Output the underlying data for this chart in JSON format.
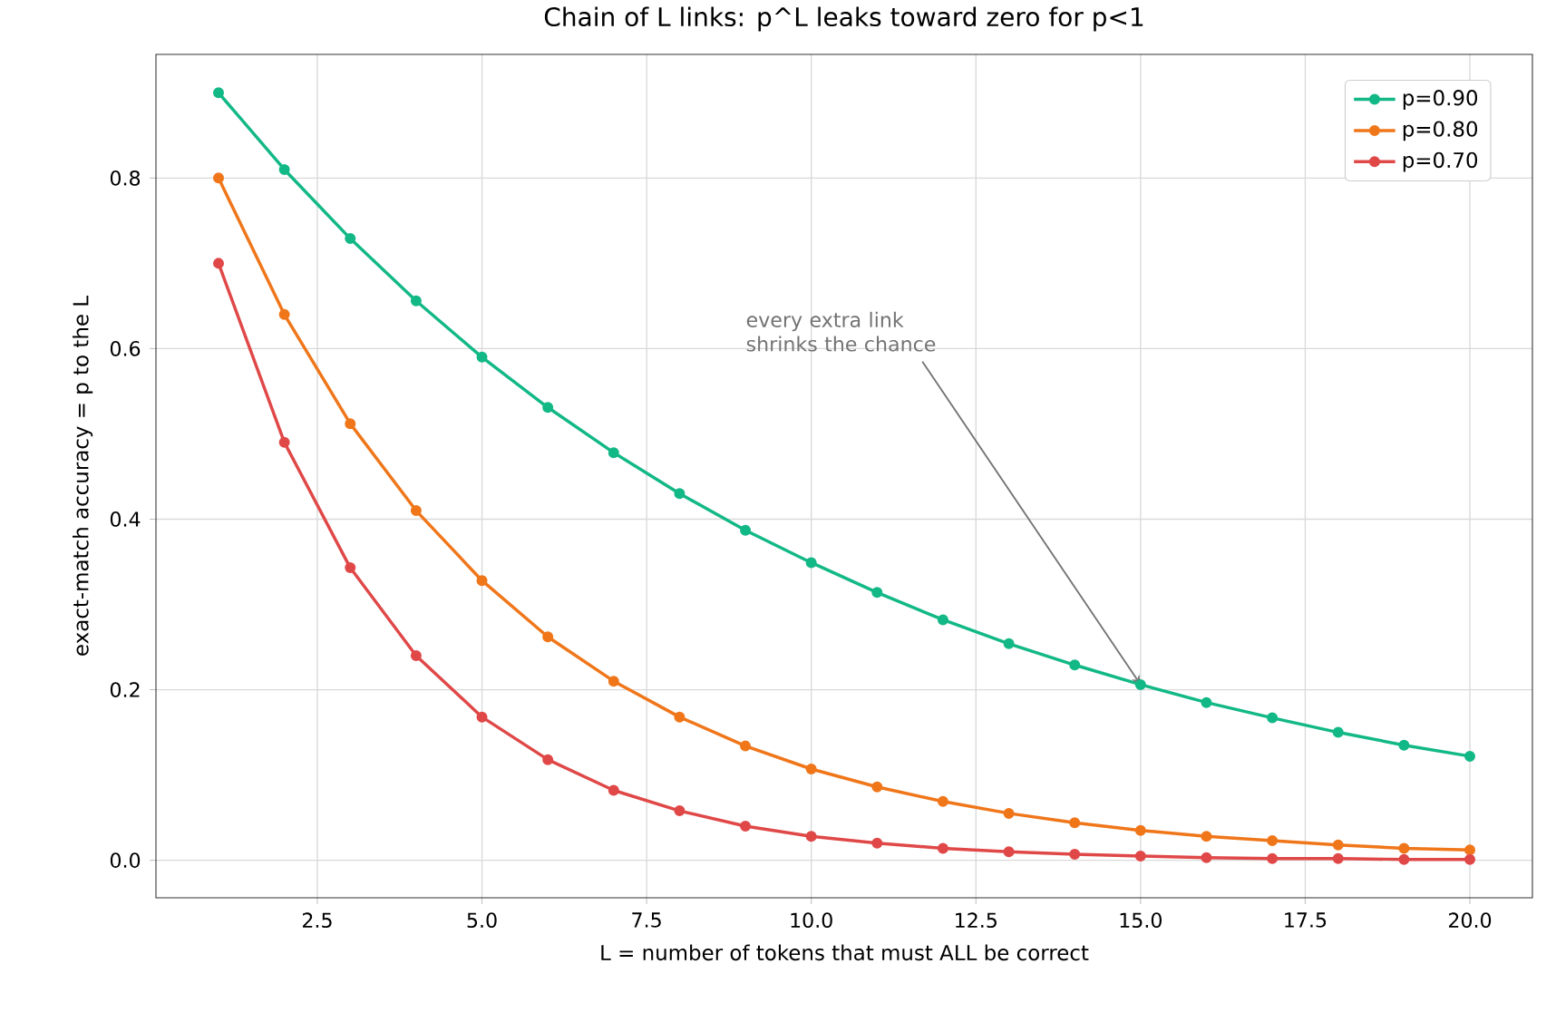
{
  "chart_data": {
    "type": "line",
    "title": "Chain of L links: p^L leaks toward zero for p<1",
    "xlabel": "L = number of tokens that must ALL be correct",
    "ylabel": "exact-match accuracy = p to the L",
    "x": [
      1,
      2,
      3,
      4,
      5,
      6,
      7,
      8,
      9,
      10,
      11,
      12,
      13,
      14,
      15,
      16,
      17,
      18,
      19,
      20
    ],
    "series": [
      {
        "name": "p=0.90",
        "color": "#12b886",
        "values": [
          0.9,
          0.81,
          0.729,
          0.656,
          0.59,
          0.531,
          0.478,
          0.43,
          0.387,
          0.349,
          0.314,
          0.282,
          0.254,
          0.229,
          0.206,
          0.185,
          0.167,
          0.15,
          0.135,
          0.122
        ]
      },
      {
        "name": "p=0.80",
        "color": "#f0761a",
        "values": [
          0.8,
          0.64,
          0.512,
          0.41,
          0.328,
          0.262,
          0.21,
          0.168,
          0.134,
          0.107,
          0.086,
          0.069,
          0.055,
          0.044,
          0.035,
          0.028,
          0.023,
          0.018,
          0.014,
          0.012
        ]
      },
      {
        "name": "p=0.70",
        "color": "#e04848",
        "values": [
          0.7,
          0.49,
          0.343,
          0.24,
          0.168,
          0.118,
          0.082,
          0.058,
          0.04,
          0.028,
          0.02,
          0.014,
          0.01,
          0.007,
          0.005,
          0.003,
          0.002,
          0.002,
          0.001,
          0.001
        ]
      }
    ],
    "xlim": [
      0.05,
      20.95
    ],
    "ylim": [
      -0.044,
      0.945
    ],
    "xticks": [
      {
        "value": 2.5,
        "label": "2.5"
      },
      {
        "value": 5,
        "label": "5.0"
      },
      {
        "value": 7.5,
        "label": "7.5"
      },
      {
        "value": 10,
        "label": "10.0"
      },
      {
        "value": 12.5,
        "label": "12.5"
      },
      {
        "value": 15,
        "label": "15.0"
      },
      {
        "value": 17.5,
        "label": "17.5"
      },
      {
        "value": 20,
        "label": "20.0"
      }
    ],
    "yticks": [
      {
        "value": 0,
        "label": "0.0"
      },
      {
        "value": 0.2,
        "label": "0.2"
      },
      {
        "value": 0.4,
        "label": "0.4"
      },
      {
        "value": 0.6,
        "label": "0.6"
      },
      {
        "value": 0.8,
        "label": "0.8"
      }
    ],
    "annotations": [
      {
        "text": "every extra link shrinks the chance",
        "x": 15,
        "y": 0.206
      }
    ],
    "grid": true,
    "legend": "top right",
    "marker": "circle",
    "line_style": "solid"
  }
}
